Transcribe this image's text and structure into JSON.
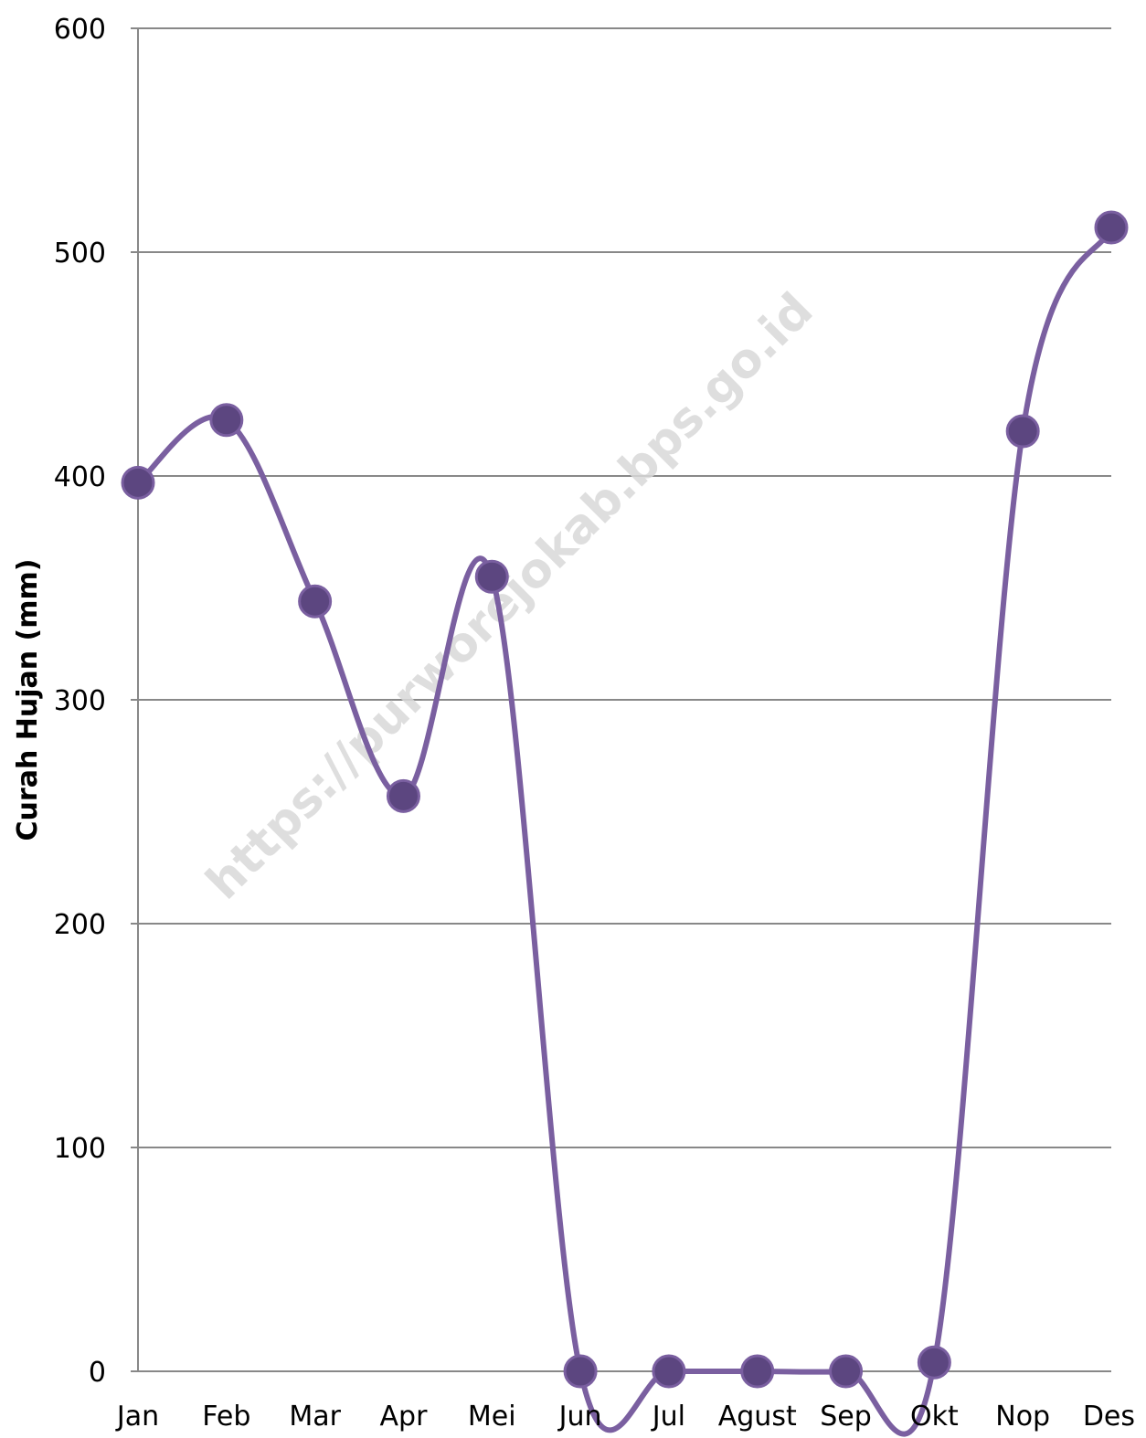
{
  "chart_data": {
    "type": "line",
    "smooth": true,
    "title": "",
    "xlabel": "",
    "ylabel": "Curah Hujan (mm)",
    "categories": [
      "Jan",
      "Feb",
      "Mar",
      "Apr",
      "Mei",
      "Jun",
      "Jul",
      "Agust",
      "Sep",
      "Okt",
      "Nop",
      "Des"
    ],
    "series": [
      {
        "values": [
          397,
          425,
          344,
          257,
          355,
          0,
          0,
          0,
          0,
          4,
          420,
          511
        ]
      }
    ],
    "ylim": [
      0,
      600
    ],
    "yticks": [
      0,
      100,
      200,
      300,
      400,
      500,
      600
    ],
    "grid": true,
    "legend": "none",
    "colors": {
      "line": "#7a5fa0",
      "marker": "#5c4680",
      "grid": "#888888"
    }
  },
  "watermark": "https://purworejokab.bps.go.id"
}
